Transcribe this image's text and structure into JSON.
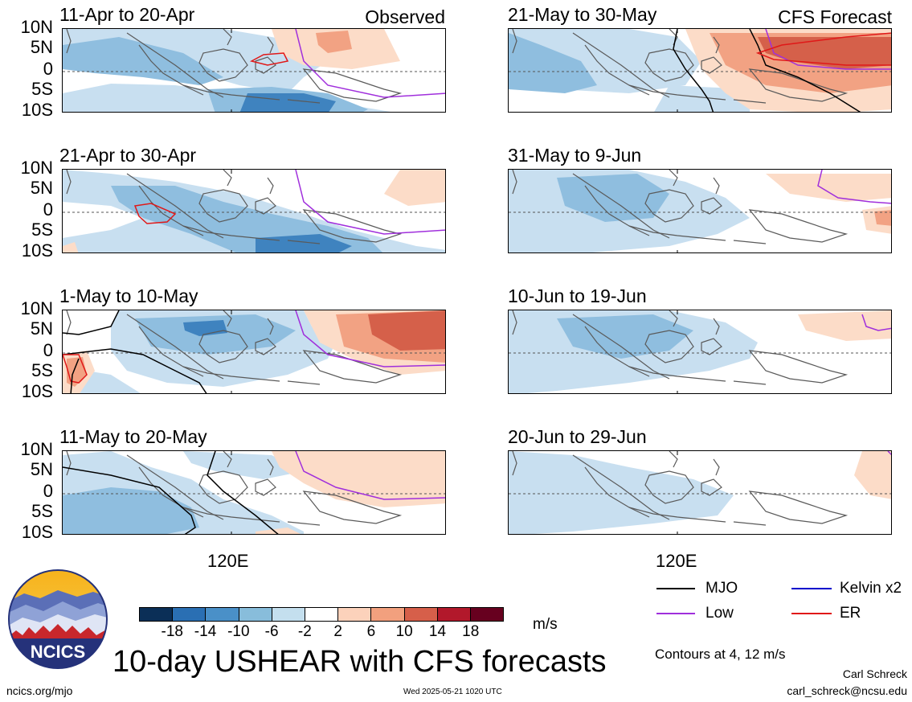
{
  "observed_label": "Observed",
  "forecast_label": "CFS Forecast",
  "lat_labels": [
    "10N",
    "5N",
    "0",
    "5S",
    "10S"
  ],
  "lon_label": "120E",
  "panels_left": [
    {
      "title": "11-Apr to 20-Apr"
    },
    {
      "title": "21-Apr to 30-Apr"
    },
    {
      "title": "1-May to 10-May"
    },
    {
      "title": "11-May to 20-May"
    }
  ],
  "panels_right": [
    {
      "title": "21-May to 30-May"
    },
    {
      "title": "31-May to 9-Jun"
    },
    {
      "title": "10-Jun to 19-Jun"
    },
    {
      "title": "20-Jun to 29-Jun"
    }
  ],
  "colorbar": {
    "ticks": [
      "-18",
      "-14",
      "-10",
      "-6",
      "-2",
      "2",
      "6",
      "10",
      "14",
      "18"
    ],
    "colors": [
      "#0b2f57",
      "#2a6fb3",
      "#4a90c8",
      "#88bddb",
      "#c4dfee",
      "#ffffff",
      "#fcd2bb",
      "#f2a07e",
      "#d65f4a",
      "#b2182b",
      "#67001f"
    ],
    "units": "m/s"
  },
  "legend": {
    "items": [
      {
        "label": "MJO",
        "color": "#000000"
      },
      {
        "label": "Kelvin x2",
        "color": "#0000cc"
      },
      {
        "label": "Low",
        "color": "#a02fdc"
      },
      {
        "label": "ER",
        "color": "#e01818"
      }
    ],
    "contours_note": "Contours at 4, 12 m/s"
  },
  "main_title": "10-day USHEAR with CFS forecasts",
  "logo_text": "NCICS",
  "footer": {
    "url": "ncics.org/mjo",
    "timestamp": "Wed 2025-05-21 1020 UTC",
    "author": "Carl Schreck",
    "email": "carl_schreck@ncsu.edu"
  }
}
